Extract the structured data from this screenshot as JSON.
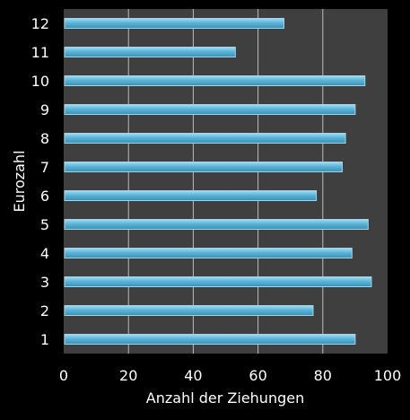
{
  "chart_data": {
    "type": "bar",
    "orientation": "horizontal",
    "categories": [
      "1",
      "2",
      "3",
      "4",
      "5",
      "6",
      "7",
      "8",
      "9",
      "10",
      "11",
      "12"
    ],
    "values": [
      90,
      77,
      95,
      89,
      94,
      78,
      86,
      87,
      90,
      93,
      53,
      68
    ],
    "xlabel": "Anzahl der Ziehungen",
    "ylabel": "Eurozahl",
    "xlim": [
      0,
      100
    ],
    "xticks": [
      "0",
      "20",
      "40",
      "60",
      "80",
      "100"
    ],
    "grid": "vertical",
    "legend": "none"
  },
  "colors": {
    "page_background": "#000000",
    "plot_background": "#3f3f3f",
    "gridline": "#bdbdbd",
    "bar_fill": "#5bb3d6",
    "bar_edge": "#9fd6ee",
    "text": "#ffffff"
  }
}
